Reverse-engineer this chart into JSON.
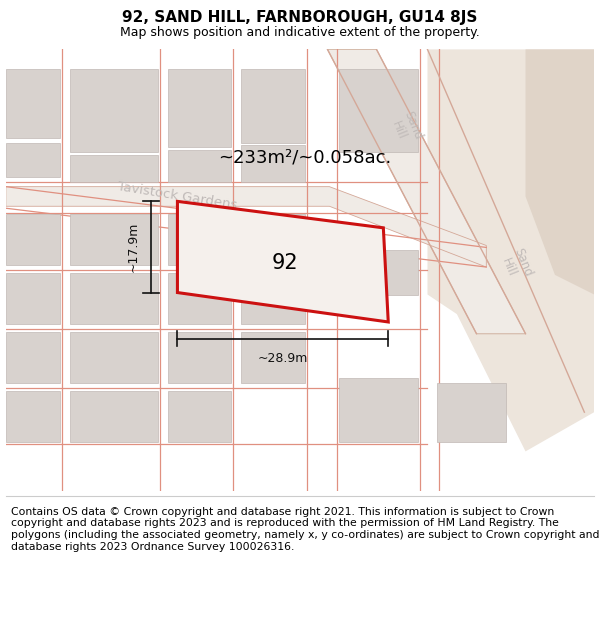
{
  "title": "92, SAND HILL, FARNBOROUGH, GU14 8JS",
  "subtitle": "Map shows position and indicative extent of the property.",
  "footer": "Contains OS data © Crown copyright and database right 2021. This information is subject to Crown copyright and database rights 2023 and is reproduced with the permission of HM Land Registry. The polygons (including the associated geometry, namely x, y co-ordinates) are subject to Crown copyright and database rights 2023 Ordnance Survey 100026316.",
  "area_label": "~233m²/~0.058ac.",
  "width_label": "~28.9m",
  "height_label": "~17.9m",
  "plot_number": "92",
  "map_bg": "#ffffff",
  "block_fill": "#d8d2ce",
  "block_edge": "#c0b8b4",
  "road_fill": "#f0ebe8",
  "road_edge": "#e0a898",
  "road_fill_light": "#f8f3f0",
  "sand_hill_fill": "#ede4dc",
  "sand_hill_edge": "#d4c0b4",
  "plot_fill": "#f5f0ec",
  "plot_edge": "#cc1111",
  "dim_color": "#111111",
  "label_color": "#cccccc",
  "title_fontsize": 11,
  "subtitle_fontsize": 9,
  "footer_fontsize": 7.8,
  "title_fontstyle": "normal",
  "title_fontweight": "bold"
}
